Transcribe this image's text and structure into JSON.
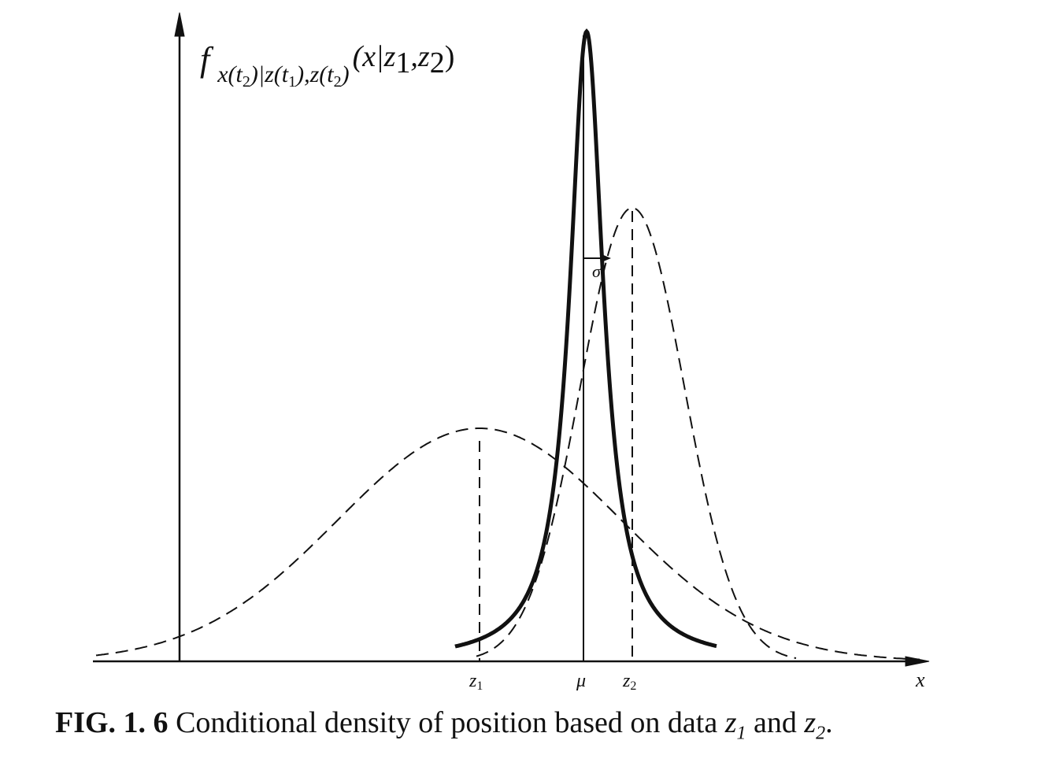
{
  "figure": {
    "y_label": {
      "f": "f",
      "sub1": "x(t",
      "sub1_idx": "2",
      "sub2": ")|z(t",
      "sub2_idx": "1",
      "sub3": "),z(t",
      "sub3_idx": "2",
      "sub4": ")",
      "args_open": "(x|z",
      "args_idx1": "1",
      "args_comma": ",z",
      "args_idx2": "2",
      "args_close": ")"
    },
    "x_axis_label": "x",
    "ticks": {
      "z1": "z",
      "z1_idx": "1",
      "mu": "μ",
      "z2": "z",
      "z2_idx": "2"
    },
    "sigma_label": "σ",
    "curves": [
      {
        "name": "z1-density",
        "style": "dashed",
        "mean": "z1",
        "relative_peak": 0.37
      },
      {
        "name": "z2-density",
        "style": "dashed",
        "mean": "z2",
        "relative_peak": 0.72
      },
      {
        "name": "conditional-density",
        "style": "solid-bold",
        "mean": "mu",
        "relative_peak": 1.0
      }
    ]
  },
  "caption": {
    "label": "FIG. 1. 6",
    "text": " Conditional density of position based on data ",
    "z": "z",
    "z1_idx": "1",
    "and": " and ",
    "z2_idx": "2",
    "end": "."
  }
}
